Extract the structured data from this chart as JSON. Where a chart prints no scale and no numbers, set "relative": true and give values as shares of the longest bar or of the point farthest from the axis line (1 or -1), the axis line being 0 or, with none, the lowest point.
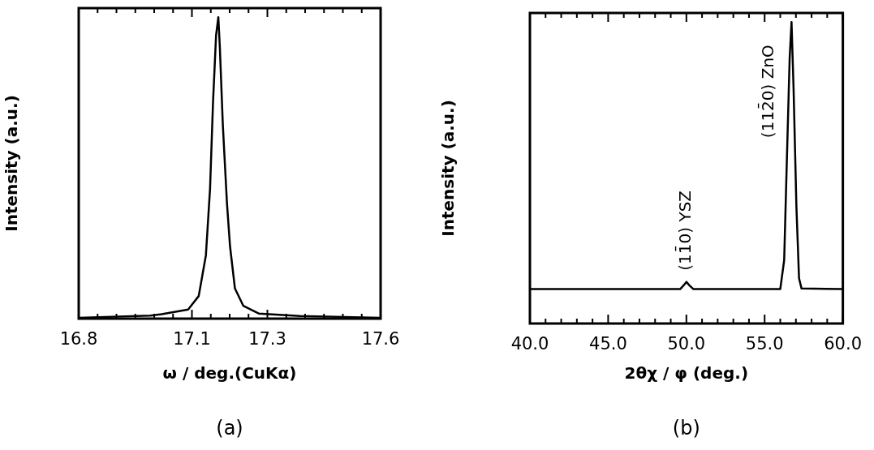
{
  "chart_data": [
    {
      "type": "line",
      "relative": true,
      "xlabel": "ω / deg.(CuKα)",
      "ylabel": "Intensity (a.u.)",
      "xlim": [
        16.8,
        17.6
      ],
      "xticks": [
        16.8,
        {
          "value": 16.85,
          "label": null
        },
        {
          "value": 16.9,
          "label": null
        },
        {
          "value": 16.95,
          "label": null
        },
        {
          "value": 17.0,
          "label": null
        },
        {
          "value": 17.05,
          "label": null
        },
        17.1,
        {
          "value": 17.15,
          "label": null
        },
        {
          "value": 17.2,
          "label": null
        },
        {
          "value": 17.25,
          "label": null
        },
        17.3,
        {
          "value": 17.35,
          "label": null
        },
        {
          "value": 17.4,
          "label": null
        },
        {
          "value": 17.45,
          "label": null
        },
        {
          "value": 17.5,
          "label": null
        },
        {
          "value": 17.55,
          "label": null
        },
        17.6
      ],
      "series": [
        {
          "color": "#000000",
          "x": [
            16.8,
            16.99,
            17.02,
            17.09,
            17.118,
            17.137,
            17.148,
            17.156,
            17.164,
            17.17,
            17.174,
            17.182,
            17.193,
            17.201,
            17.214,
            17.236,
            17.277,
            17.386,
            17.6
          ],
          "values": [
            0.003,
            0.01,
            0.015,
            0.03,
            0.075,
            0.21,
            0.43,
            0.72,
            0.94,
            1,
            0.9,
            0.64,
            0.38,
            0.24,
            0.1,
            0.043,
            0.017,
            0.009,
            0.003
          ]
        }
      ],
      "annotations": [
        "(a)"
      ],
      "grid": false,
      "marker": "none"
    },
    {
      "type": "line",
      "relative": true,
      "xlabel": "2θχ / φ (deg.)",
      "ylabel": "Intensity (a.u.)",
      "xlim": [
        40,
        60
      ],
      "xticks": [
        {
          "value": 40,
          "label": "40.0"
        },
        {
          "value": 41,
          "label": null
        },
        {
          "value": 42,
          "label": null
        },
        {
          "value": 43,
          "label": null
        },
        {
          "value": 44,
          "label": null
        },
        {
          "value": 45,
          "label": "45.0"
        },
        {
          "value": 46,
          "label": null
        },
        {
          "value": 47,
          "label": null
        },
        {
          "value": 48,
          "label": null
        },
        {
          "value": 49,
          "label": null
        },
        {
          "value": 50,
          "label": "50.0"
        },
        {
          "value": 51,
          "label": null
        },
        {
          "value": 52,
          "label": null
        },
        {
          "value": 53,
          "label": null
        },
        {
          "value": 54,
          "label": null
        },
        {
          "value": 55,
          "label": "55.0"
        },
        {
          "value": 56,
          "label": null
        },
        {
          "value": 57,
          "label": null
        },
        {
          "value": 58,
          "label": null
        },
        {
          "value": 59,
          "label": null
        },
        {
          "value": 60,
          "label": "60.0"
        }
      ],
      "series": [
        {
          "color": "#000000",
          "x": [
            40,
            49.6,
            49.85,
            50.0,
            50.2,
            50.45,
            56.0,
            56.25,
            56.42,
            56.6,
            56.72,
            56.85,
            57.03,
            57.2,
            57.36,
            60
          ],
          "values": [
            0.114,
            0.114,
            0.128,
            0.138,
            0.126,
            0.114,
            0.114,
            0.21,
            0.54,
            0.88,
            1,
            0.78,
            0.39,
            0.15,
            0.116,
            0.114
          ]
        }
      ],
      "annotations": [
        {
          "text": "(11̄0) YSZ",
          "x": 50.0,
          "y": 0.138
        },
        {
          "text": "(112̄0) ZnO",
          "x": 56.72,
          "y": 1
        },
        "(b)"
      ],
      "grid": false,
      "marker": "none"
    }
  ]
}
